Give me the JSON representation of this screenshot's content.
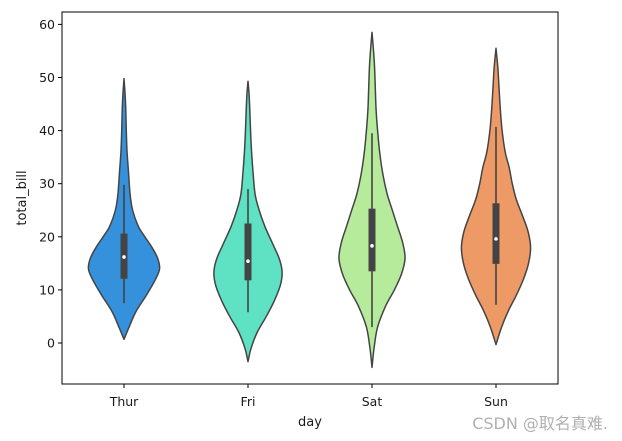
{
  "chart_data": {
    "type": "violin",
    "xlabel": "day",
    "ylabel": "total_bill",
    "ylim": [
      -7,
      62
    ],
    "yticks": [
      0,
      10,
      20,
      30,
      40,
      50,
      60
    ],
    "categories": [
      "Thur",
      "Fri",
      "Sat",
      "Sun"
    ],
    "grid": false,
    "violins": [
      {
        "category": "Thur",
        "color": "#3591dc",
        "range": [
          0.7,
          49.8
        ],
        "whiskers": [
          7.5,
          29.8
        ],
        "q1": 12.1,
        "median": 16.2,
        "q3": 20.6,
        "density": [
          [
            0.7,
            0.0
          ],
          [
            3,
            0.1
          ],
          [
            6,
            0.24
          ],
          [
            9,
            0.44
          ],
          [
            12,
            0.62
          ],
          [
            14,
            0.7
          ],
          [
            16,
            0.66
          ],
          [
            18,
            0.55
          ],
          [
            20,
            0.41
          ],
          [
            22,
            0.28
          ],
          [
            25,
            0.17
          ],
          [
            28,
            0.12
          ],
          [
            32,
            0.09
          ],
          [
            36,
            0.06
          ],
          [
            40,
            0.045
          ],
          [
            44,
            0.035
          ],
          [
            47,
            0.02
          ],
          [
            49.8,
            0.0
          ]
        ]
      },
      {
        "category": "Fri",
        "color": "#5fe1c4",
        "range": [
          -3.5,
          49.3
        ],
        "whiskers": [
          5.8,
          29.0
        ],
        "q1": 11.8,
        "median": 15.4,
        "q3": 22.5,
        "density": [
          [
            -3.5,
            0.0
          ],
          [
            -1,
            0.06
          ],
          [
            2,
            0.18
          ],
          [
            5,
            0.36
          ],
          [
            8,
            0.52
          ],
          [
            11,
            0.64
          ],
          [
            13.5,
            0.67
          ],
          [
            16,
            0.61
          ],
          [
            19,
            0.47
          ],
          [
            22,
            0.33
          ],
          [
            25,
            0.22
          ],
          [
            28,
            0.14
          ],
          [
            32,
            0.1
          ],
          [
            36,
            0.07
          ],
          [
            40,
            0.05
          ],
          [
            44,
            0.035
          ],
          [
            47,
            0.02
          ],
          [
            49.3,
            0.0
          ]
        ]
      },
      {
        "category": "Sat",
        "color": "#b7eb9c",
        "range": [
          -4.6,
          58.5
        ],
        "whiskers": [
          3.0,
          39.5
        ],
        "q1": 13.5,
        "median": 18.3,
        "q3": 25.3,
        "density": [
          [
            -4.6,
            0.0
          ],
          [
            -1,
            0.04
          ],
          [
            3,
            0.11
          ],
          [
            7,
            0.27
          ],
          [
            10,
            0.44
          ],
          [
            13,
            0.58
          ],
          [
            16,
            0.65
          ],
          [
            19,
            0.6
          ],
          [
            22,
            0.5
          ],
          [
            25,
            0.4
          ],
          [
            28,
            0.3
          ],
          [
            32,
            0.21
          ],
          [
            36,
            0.15
          ],
          [
            40,
            0.11
          ],
          [
            44,
            0.08
          ],
          [
            48,
            0.065
          ],
          [
            52,
            0.05
          ],
          [
            55,
            0.03
          ],
          [
            58.5,
            0.0
          ]
        ]
      },
      {
        "category": "Sun",
        "color": "#ed9a66",
        "range": [
          -0.3,
          55.5
        ],
        "whiskers": [
          7.2,
          40.7
        ],
        "q1": 14.9,
        "median": 19.6,
        "q3": 26.3,
        "density": [
          [
            -0.3,
            0.0
          ],
          [
            3,
            0.11
          ],
          [
            6,
            0.24
          ],
          [
            9,
            0.4
          ],
          [
            12,
            0.54
          ],
          [
            15,
            0.64
          ],
          [
            18,
            0.68
          ],
          [
            21,
            0.63
          ],
          [
            24,
            0.52
          ],
          [
            27,
            0.4
          ],
          [
            30,
            0.32
          ],
          [
            33,
            0.26
          ],
          [
            36,
            0.18
          ],
          [
            40,
            0.12
          ],
          [
            44,
            0.085
          ],
          [
            48,
            0.06
          ],
          [
            52,
            0.035
          ],
          [
            55.5,
            0.0
          ]
        ]
      }
    ]
  },
  "watermark": "CSDN @取名真难."
}
